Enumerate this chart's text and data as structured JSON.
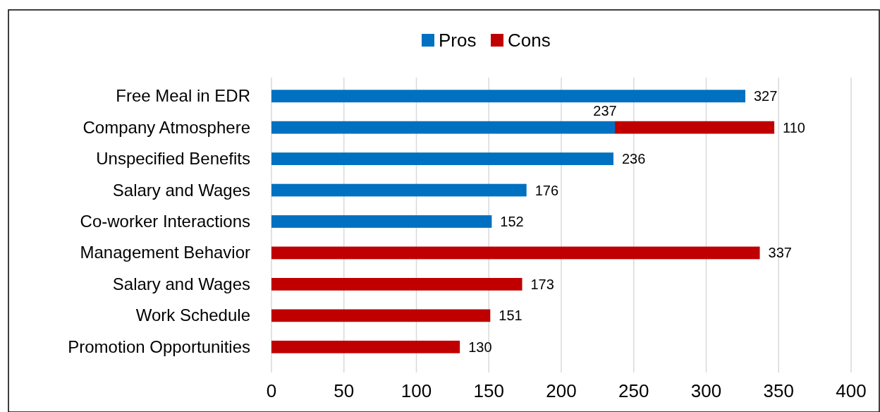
{
  "chart_data": {
    "type": "bar",
    "orientation": "horizontal",
    "stacked": true,
    "categories": [
      "Free Meal in EDR",
      "Company Atmosphere",
      "Unspecified Benefits",
      "Salary and Wages",
      "Co-worker Interactions",
      "Management Behavior",
      "Salary and Wages",
      "Work Schedule",
      "Promotion Opportunities"
    ],
    "series": [
      {
        "name": "Pros",
        "color": "#0070c0",
        "values": [
          327,
          237,
          236,
          176,
          152,
          null,
          null,
          null,
          null
        ]
      },
      {
        "name": "Cons",
        "color": "#c00000",
        "values": [
          null,
          110,
          null,
          null,
          null,
          337,
          173,
          151,
          130
        ]
      }
    ],
    "xlim": [
      0,
      400
    ],
    "xticks": [
      0,
      50,
      100,
      150,
      200,
      250,
      300,
      350,
      400
    ],
    "grid": "x",
    "legend": "top",
    "data_labels": true
  }
}
